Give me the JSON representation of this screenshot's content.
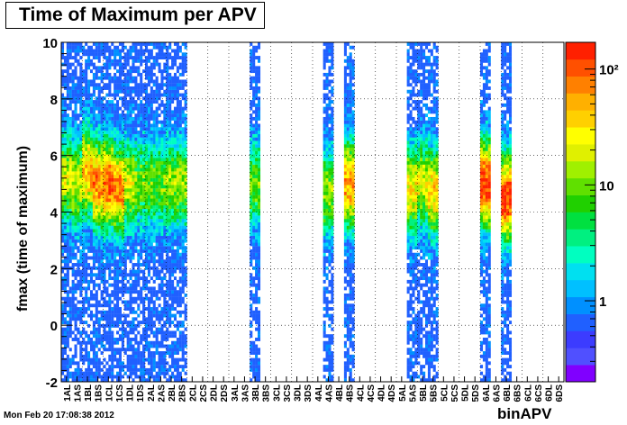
{
  "chart_data": {
    "type": "heatmap",
    "title": "Time of Maximum per APV",
    "xlabel": "binAPV",
    "ylabel": "fmax (time of  maximum)",
    "ylim": [
      -2,
      10
    ],
    "yticks": [
      "-2",
      "0",
      "2",
      "4",
      "6",
      "8",
      "10"
    ],
    "categories": [
      "1AL",
      "1AS",
      "1BL",
      "1BS",
      "1CL",
      "1CS",
      "1DL",
      "1DS",
      "2AL",
      "2AS",
      "2BL",
      "2BS",
      "2CL",
      "2CS",
      "2DL",
      "2DS",
      "3AL",
      "3AS",
      "3BL",
      "3BS",
      "3CL",
      "3CS",
      "3DL",
      "3DS",
      "4AL",
      "4AS",
      "4BL",
      "4BS",
      "4CL",
      "4CS",
      "4DL",
      "4DS",
      "5AL",
      "5AS",
      "5BL",
      "5BS",
      "5CL",
      "5CS",
      "5DL",
      "5DS",
      "6AL",
      "6AS",
      "6BL",
      "6BS",
      "6CL",
      "6CS",
      "6DL",
      "6DS"
    ],
    "z_scale": "log",
    "z_ticks": [
      "1",
      "10",
      "10²"
    ],
    "grid": true,
    "populated": [
      {
        "apv": "1AL",
        "peak": 5.2,
        "level": 0.55
      },
      {
        "apv": "1AS",
        "peak": 5.0,
        "level": 0.55
      },
      {
        "apv": "1BL",
        "peak": 5.4,
        "level": 0.7
      },
      {
        "apv": "1BS",
        "peak": 5.0,
        "level": 0.75
      },
      {
        "apv": "1CL",
        "peak": 5.0,
        "level": 0.8
      },
      {
        "apv": "1CS",
        "peak": 4.8,
        "level": 0.75
      },
      {
        "apv": "1DL",
        "peak": 5.0,
        "level": 0.55
      },
      {
        "apv": "1DS",
        "peak": 5.0,
        "level": 0.45
      },
      {
        "apv": "2AL",
        "peak": 5.0,
        "level": 0.45
      },
      {
        "apv": "2AS",
        "peak": 5.0,
        "level": 0.45
      },
      {
        "apv": "2BL",
        "peak": 5.0,
        "level": 0.5
      },
      {
        "apv": "2BS",
        "peak": 5.0,
        "level": 0.5
      },
      {
        "apv": "3BL",
        "peak": 5.0,
        "level": 0.45
      },
      {
        "apv": "4AS",
        "peak": 4.7,
        "level": 0.5
      },
      {
        "apv": "4BS",
        "peak": 5.0,
        "level": 0.72
      },
      {
        "apv": "5AS",
        "peak": 4.8,
        "level": 0.62
      },
      {
        "apv": "5BL",
        "peak": 5.0,
        "level": 0.55
      },
      {
        "apv": "5BS",
        "peak": 4.7,
        "level": 0.65
      },
      {
        "apv": "6AL",
        "peak": 5.0,
        "level": 0.85
      },
      {
        "apv": "6BL",
        "peak": 4.5,
        "level": 0.85
      }
    ]
  },
  "footer": {
    "timestamp": "Mon Feb 20 17:08:38 2012"
  },
  "colors": {
    "palette": [
      "#8000ff",
      "#5050ff",
      "#3c3cff",
      "#2060ff",
      "#0090ff",
      "#00c0ff",
      "#00e0f0",
      "#00ffc0",
      "#00f080",
      "#00e040",
      "#20d000",
      "#60e000",
      "#a0f000",
      "#e0f000",
      "#ffff00",
      "#ffd000",
      "#ffb000",
      "#ff8000",
      "#ff5000",
      "#ff2000"
    ]
  }
}
